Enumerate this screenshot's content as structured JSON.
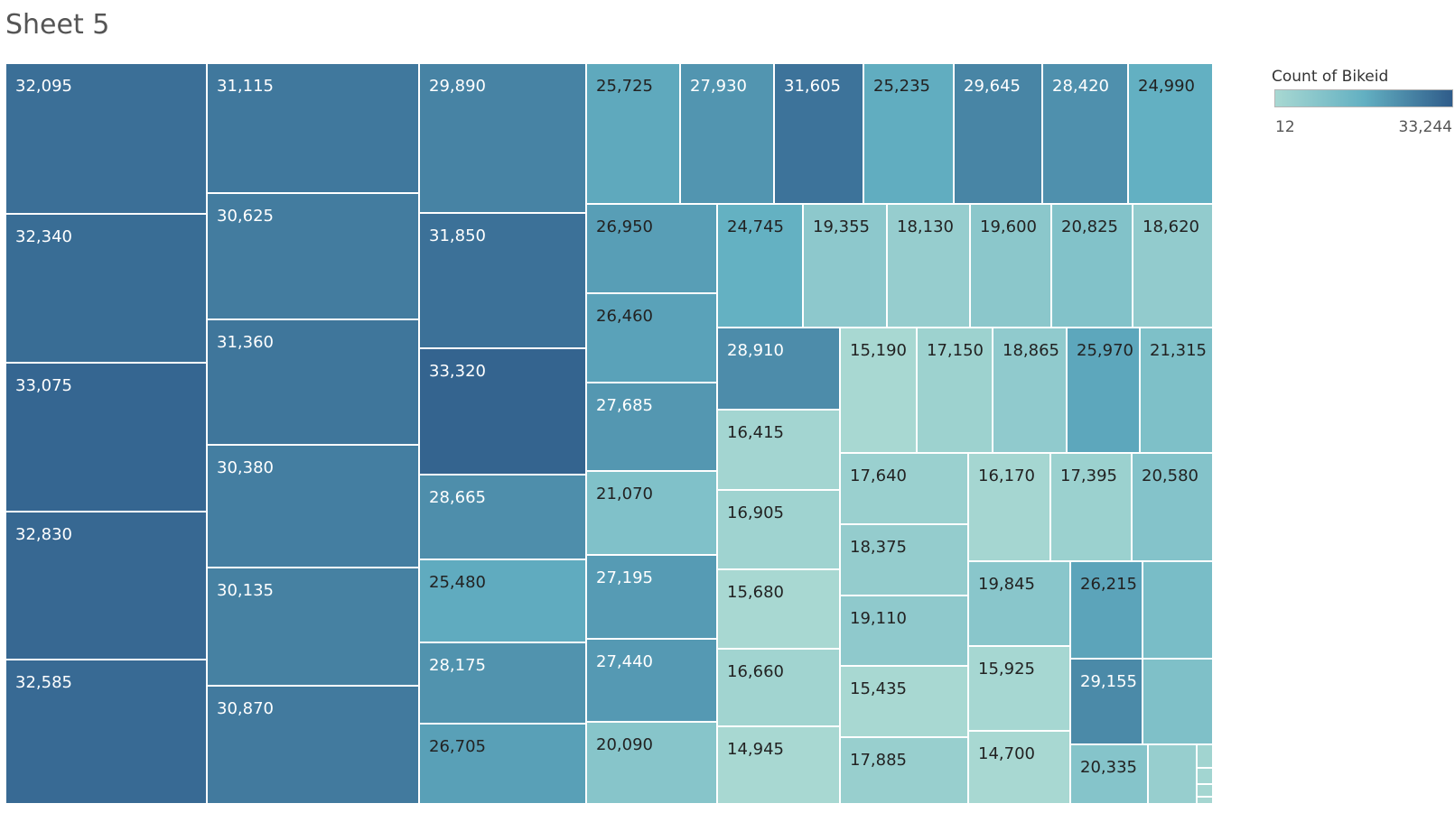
{
  "title": "Sheet 5",
  "legend": {
    "title": "Count of Bikeid",
    "min_label": "12",
    "max_label": "33,244"
  },
  "colors": {
    "low": "#a8d8d2",
    "mid": "#63b0c2",
    "high": "#2f5c8a"
  },
  "chart_data": {
    "type": "treemap",
    "measure": "Count of Bikeid",
    "color_range": [
      12,
      33244
    ],
    "values": [
      32095,
      32340,
      33075,
      32830,
      32585,
      31115,
      30625,
      31360,
      30380,
      30135,
      30870,
      29890,
      31850,
      33320,
      28665,
      25480,
      28175,
      26705,
      25725,
      27930,
      31605,
      25235,
      29645,
      28420,
      24990,
      26950,
      26460,
      27685,
      21070,
      27195,
      27440,
      20090,
      24745,
      19355,
      18130,
      19600,
      20825,
      18620,
      28910,
      16415,
      16905,
      15680,
      16660,
      14945,
      15190,
      17150,
      18865,
      25970,
      21315,
      17640,
      18375,
      19110,
      15435,
      17885,
      16170,
      17395,
      20580,
      19845,
      15925,
      14700,
      26215,
      29155,
      20335
    ],
    "labels": [
      "32,095",
      "32,340",
      "33,075",
      "32,830",
      "32,585",
      "31,115",
      "30,625",
      "31,360",
      "30,380",
      "30,135",
      "30,870",
      "29,890",
      "31,850",
      "33,320",
      "28,665",
      "25,480",
      "28,175",
      "26,705",
      "25,725",
      "27,930",
      "31,605",
      "25,235",
      "29,645",
      "28,420",
      "24,990",
      "26,950",
      "26,460",
      "27,685",
      "21,070",
      "27,195",
      "27,440",
      "20,090",
      "24,745",
      "19,355",
      "18,130",
      "19,600",
      "20,825",
      "18,620",
      "28,910",
      "16,415",
      "16,905",
      "15,680",
      "16,660",
      "14,945",
      "15,190",
      "17,150",
      "18,865",
      "25,970",
      "21,315",
      "17,640",
      "18,375",
      "19,110",
      "15,435",
      "17,885",
      "16,170",
      "17,395",
      "20,580",
      "19,845",
      "15,925",
      "14,700",
      "26,215",
      "29,155",
      "20,335"
    ]
  }
}
